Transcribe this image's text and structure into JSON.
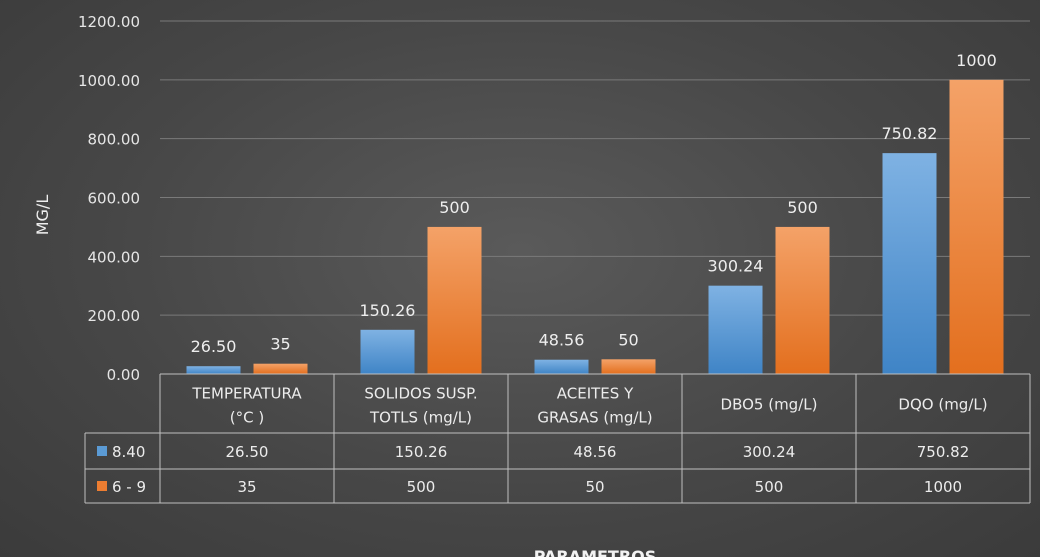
{
  "chart_data": {
    "type": "bar",
    "ylabel": "MG/L",
    "xlabel": "PARAMETROS",
    "ylim": [
      0,
      1200
    ],
    "ytick_labels": [
      "0.00",
      "200.00",
      "400.00",
      "600.00",
      "800.00",
      "1000.00",
      "1200.00"
    ],
    "ytick_values": [
      0,
      200,
      400,
      600,
      800,
      1000,
      1200
    ],
    "categories": [
      [
        "TEMPERATURA",
        "(°C )"
      ],
      [
        "SOLIDOS  SUSP.",
        "TOTLS (mg/L)"
      ],
      [
        "ACEITES Y",
        "GRASAS (mg/L)"
      ],
      [
        "DBO5 (mg/L)"
      ],
      [
        "DQO (mg/L)"
      ]
    ],
    "series": [
      {
        "name": "8.40",
        "color": "#5b9bd5",
        "values": [
          26.5,
          150.26,
          48.56,
          300.24,
          750.82
        ],
        "labels": [
          "26.50",
          "150.26",
          "48.56",
          "300.24",
          "750.82"
        ]
      },
      {
        "name": "6 - 9",
        "color": "#ed7d31",
        "values": [
          35,
          500,
          50,
          500,
          1000
        ],
        "labels": [
          "35",
          "500",
          "50",
          "500",
          "1000"
        ]
      }
    ],
    "grid": true,
    "legend": "data-table"
  }
}
